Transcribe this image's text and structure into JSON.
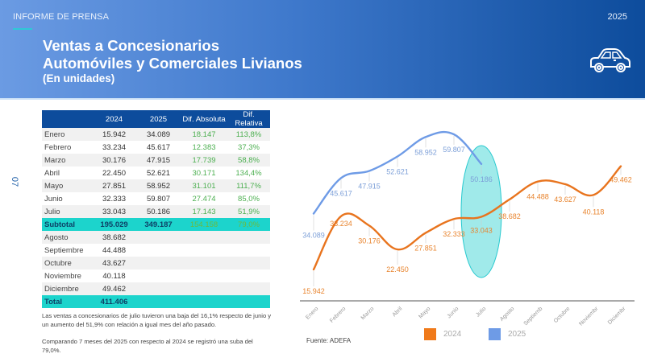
{
  "header": {
    "kicker": "INFORME DE PRENSA",
    "year": "2025",
    "title_line1": "Ventas a Concesionarios",
    "title_line2": "Automóviles y Comerciales Livianos",
    "subtitle": "(En unidades)",
    "icon": "car-icon"
  },
  "page_number": "07",
  "table": {
    "headers": [
      "",
      "2024",
      "2025",
      "Dif. Absoluta",
      "Dif. Relativa"
    ],
    "rows": [
      {
        "month": "Enero",
        "y2024": "15.942",
        "y2025": "34.089",
        "abs": "18.147",
        "rel": "113,8%"
      },
      {
        "month": "Febrero",
        "y2024": "33.234",
        "y2025": "45.617",
        "abs": "12.383",
        "rel": "37,3%"
      },
      {
        "month": "Marzo",
        "y2024": "30.176",
        "y2025": "47.915",
        "abs": "17.739",
        "rel": "58,8%"
      },
      {
        "month": "Abril",
        "y2024": "22.450",
        "y2025": "52.621",
        "abs": "30.171",
        "rel": "134,4%"
      },
      {
        "month": "Mayo",
        "y2024": "27.851",
        "y2025": "58.952",
        "abs": "31.101",
        "rel": "111,7%"
      },
      {
        "month": "Junio",
        "y2024": "32.333",
        "y2025": "59.807",
        "abs": "27.474",
        "rel": "85,0%"
      },
      {
        "month": "Julio",
        "y2024": "33.043",
        "y2025": "50.186",
        "abs": "17.143",
        "rel": "51,9%"
      }
    ],
    "subtotal": {
      "label": "Subtotal",
      "y2024": "195.029",
      "y2025": "349.187",
      "abs": "154.158",
      "rel": "79,0%"
    },
    "rows2": [
      {
        "month": "Agosto",
        "y2024": "38.682"
      },
      {
        "month": "Septiembre",
        "y2024": "44.488"
      },
      {
        "month": "Octubre",
        "y2024": "43.627"
      },
      {
        "month": "Noviembre",
        "y2024": "40.118"
      },
      {
        "month": "Diciembre",
        "y2024": "49.462"
      }
    ],
    "total": {
      "label": "Total",
      "y2024": "411.406"
    }
  },
  "notes": {
    "p1": "Las ventas a concesionarios de julio tuvieron una baja del 16,1% respecto de junio y un aumento del 51,9% con relación a igual mes del año pasado.",
    "p2": "Comparando 7 meses del 2025 con respecto al 2024 se registró una suba del 79,0%."
  },
  "source": "Fuente: ADEFA",
  "legend": [
    {
      "label": "2024",
      "color": "#f07a1a"
    },
    {
      "label": "2025",
      "color": "#6e9be6"
    }
  ],
  "chart_data": {
    "type": "line",
    "title": "",
    "categories": [
      "Enero",
      "Febrero",
      "Marzo",
      "Abril",
      "Mayo",
      "Junio",
      "Julio",
      "Agosto",
      "Septiembre",
      "Octubre",
      "Noviembre",
      "Diciembre"
    ],
    "x_tick_labels": [
      "Enero",
      "Febrero",
      "Marzo",
      "Abril",
      "Mayo",
      "Junio",
      "Julio",
      "Agosto",
      "Septiemb",
      "Octubre",
      "Noviembr",
      "Diciembr"
    ],
    "series": [
      {
        "name": "2024",
        "color": "#e8741e",
        "values": [
          15942,
          33234,
          30176,
          22450,
          27851,
          32333,
          33043,
          38682,
          44488,
          43627,
          40118,
          49462
        ],
        "labels": [
          "15.942",
          "33.234",
          "30.176",
          "22.450",
          "27.851",
          "32.333",
          "33.043",
          "38.682",
          "44.488",
          "43.627",
          "40.118",
          "49.462"
        ]
      },
      {
        "name": "2025",
        "color": "#6e9be6",
        "values": [
          34089,
          45617,
          47915,
          52621,
          58952,
          59807,
          50186
        ],
        "labels": [
          "34.089",
          "45.617",
          "47.915",
          "52.621",
          "58.952",
          "59.807",
          "50.186"
        ]
      }
    ],
    "highlight": {
      "category": "Julio",
      "shape": "ellipse",
      "color": "#1cd4cc"
    },
    "xlabel": "",
    "ylabel": "",
    "grid": false,
    "legend_position": "bottom"
  }
}
